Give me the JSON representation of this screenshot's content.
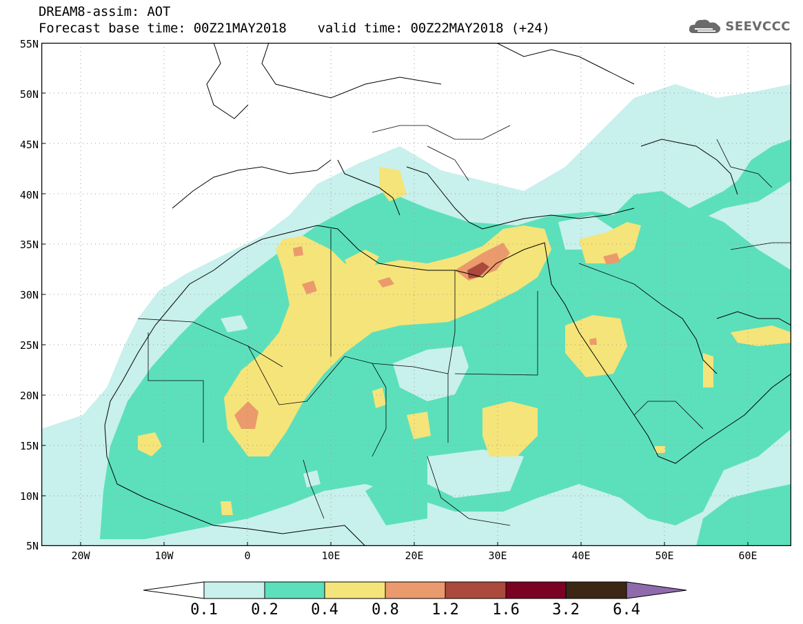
{
  "header": {
    "title": "DREAM8-assim: AOT",
    "forecast_base": "Forecast base time: 00Z21MAY2018",
    "valid_time": "valid time: 00Z22MAY2018 (+24)"
  },
  "logo": {
    "text": "SEEVCCC",
    "icon": "cloud-icon"
  },
  "map": {
    "lat_labels": [
      "55N",
      "50N",
      "45N",
      "40N",
      "35N",
      "30N",
      "25N",
      "20N",
      "15N",
      "10N",
      "5N"
    ],
    "lon_labels": [
      "20W",
      "10W",
      "0",
      "10E",
      "20E",
      "30E",
      "40E",
      "50E",
      "60E"
    ],
    "grid": "dotted",
    "lat_range": [
      5,
      55
    ],
    "lon_range": [
      -25,
      65
    ]
  },
  "colorbar": {
    "labels": [
      "0.1",
      "0.2",
      "0.4",
      "0.8",
      "1.2",
      "1.6",
      "3.2",
      "6.4"
    ],
    "colors": [
      "#c8f0ec",
      "#5ce0bb",
      "#f5e479",
      "#ea9a6c",
      "#ab4a3c",
      "#7a0324",
      "#3b2714",
      "#8f6bac"
    ]
  }
}
